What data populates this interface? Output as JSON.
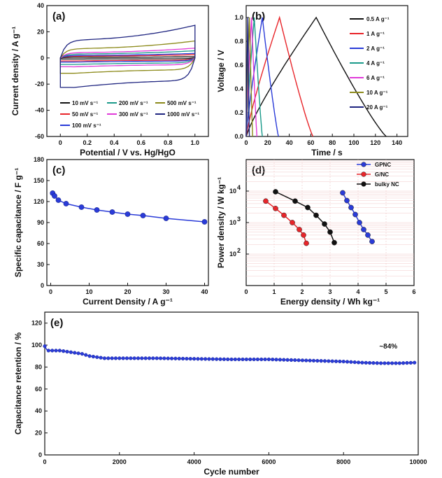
{
  "chart_data": [
    {
      "id": "a",
      "type": "line",
      "panel_label": "(a)",
      "xlabel": "Potential / V vs. Hg/HgO",
      "ylabel": "Current density / A g⁻¹",
      "xlim": [
        -0.1,
        1.1
      ],
      "ylim": [
        -60,
        40
      ],
      "xticks": [
        0.0,
        0.2,
        0.4,
        0.6,
        0.8,
        1.0
      ],
      "yticks": [
        -60,
        -40,
        -20,
        0,
        20,
        40
      ],
      "series": [
        {
          "name": "10 mV s⁻¹",
          "color": "#111111",
          "amp": 0.9
        },
        {
          "name": "50 mV s⁻¹",
          "color": "#e8252a",
          "amp": 2.5
        },
        {
          "name": "100 mV s⁻¹",
          "color": "#2a3bd8",
          "amp": 3.5
        },
        {
          "name": "200 mV s⁻¹",
          "color": "#1a9a8a",
          "amp": 5.5
        },
        {
          "name": "300 mV s⁻¹",
          "color": "#e03ad8",
          "amp": 7.5
        },
        {
          "name": "500 mV s⁻¹",
          "color": "#8c8a1a",
          "amp": 13
        },
        {
          "name": "1000 mV s⁻¹",
          "color": "#1f2580",
          "amp": 25
        }
      ],
      "legend_placement": "bottom"
    },
    {
      "id": "b",
      "type": "line",
      "panel_label": "(b)",
      "xlabel": "Time / s",
      "ylabel": "Voltage / V",
      "xlim": [
        0,
        150
      ],
      "ylim": [
        0,
        1.1
      ],
      "xticks": [
        0,
        20,
        40,
        60,
        80,
        100,
        120,
        140
      ],
      "yticks": [
        0.0,
        0.2,
        0.4,
        0.6,
        0.8,
        1.0
      ],
      "series": [
        {
          "name": "0.5 A g⁻¹",
          "color": "#111111",
          "charge_end": 65,
          "discharge_end": 130
        },
        {
          "name": "1 A g⁻¹",
          "color": "#e8252a",
          "charge_end": 31,
          "discharge_end": 62
        },
        {
          "name": "2 A g⁻¹",
          "color": "#2a3bd8",
          "charge_end": 15,
          "discharge_end": 30
        },
        {
          "name": "4 A g⁻¹",
          "color": "#1a9a8a",
          "charge_end": 7.5,
          "discharge_end": 15
        },
        {
          "name": "6 A g⁻¹",
          "color": "#e03ad8",
          "charge_end": 5,
          "discharge_end": 10
        },
        {
          "name": "10 A g⁻¹",
          "color": "#8c8a1a",
          "charge_end": 3,
          "discharge_end": 6
        },
        {
          "name": "20 A g⁻¹",
          "color": "#1f2580",
          "charge_end": 1.5,
          "discharge_end": 3
        }
      ],
      "legend_placement": "right"
    },
    {
      "id": "c",
      "type": "line",
      "panel_label": "(c)",
      "xlabel": "Current Density / A g⁻¹",
      "ylabel": "Specific capacitance / F g⁻¹",
      "xlim": [
        -1,
        41
      ],
      "ylim": [
        0,
        180
      ],
      "xticks": [
        0,
        10,
        20,
        30,
        40
      ],
      "yticks": [
        0,
        30,
        60,
        90,
        120,
        150,
        180
      ],
      "series": [
        {
          "name": "",
          "color": "#2a3bd8",
          "x": [
            0.5,
            1,
            2,
            4,
            8,
            12,
            16,
            20,
            24,
            30,
            40
          ],
          "y": [
            132,
            128,
            122,
            117,
            112,
            108,
            105,
            102,
            100,
            96,
            91
          ]
        }
      ]
    },
    {
      "id": "d",
      "type": "scatter",
      "panel_label": "(d)",
      "xlabel": "Energy density / Wh kg⁻¹",
      "ylabel": "Power density / W kg⁻¹",
      "xlim": [
        0,
        6
      ],
      "ylim_log10": [
        1,
        5
      ],
      "log_y": true,
      "xticks": [
        0,
        1,
        2,
        3,
        4,
        5,
        6
      ],
      "ytick_exponents": [
        2,
        3,
        4
      ],
      "series": [
        {
          "name": "GPNC",
          "color": "#2a3bd8",
          "x": [
            3.45,
            3.6,
            3.75,
            3.9,
            4.05,
            4.2,
            4.35,
            4.5
          ],
          "y": [
            8800,
            5000,
            3000,
            1800,
            1000,
            600,
            400,
            250
          ]
        },
        {
          "name": "G/NC",
          "color": "#e8252a",
          "x": [
            0.7,
            1.05,
            1.35,
            1.65,
            1.9,
            2.05,
            2.15
          ],
          "y": [
            4800,
            2800,
            1700,
            1000,
            600,
            400,
            220
          ]
        },
        {
          "name": "bulky NC",
          "color": "#111111",
          "x": [
            1.05,
            1.75,
            2.2,
            2.5,
            2.8,
            3.0,
            3.15
          ],
          "y": [
            9500,
            4800,
            3000,
            1700,
            900,
            500,
            230
          ]
        }
      ],
      "legend_placement": "top-right"
    },
    {
      "id": "e",
      "type": "line",
      "panel_label": "(e)",
      "xlabel": "Cycle number",
      "ylabel": "Capacitance retention / %",
      "xlim": [
        0,
        10000
      ],
      "ylim": [
        0,
        130
      ],
      "xticks": [
        0,
        2000,
        4000,
        6000,
        8000,
        10000
      ],
      "yticks": [
        0,
        20,
        40,
        60,
        80,
        100,
        120
      ],
      "annotation": "~84%",
      "series": [
        {
          "name": "",
          "color": "#2a3bd8",
          "x": [
            0,
            50,
            100,
            200,
            400,
            600,
            800,
            1000,
            1200,
            1400,
            1600,
            1800,
            2000,
            3000,
            4000,
            5000,
            6000,
            7000,
            7500,
            8000,
            8500,
            9000,
            9500,
            9900
          ],
          "y": [
            99,
            96,
            95,
            95,
            95,
            94,
            93,
            92,
            90,
            89,
            88,
            88,
            88,
            88,
            87.5,
            87,
            87,
            86,
            85.5,
            85,
            84,
            83.5,
            83.5,
            84
          ]
        }
      ]
    }
  ]
}
